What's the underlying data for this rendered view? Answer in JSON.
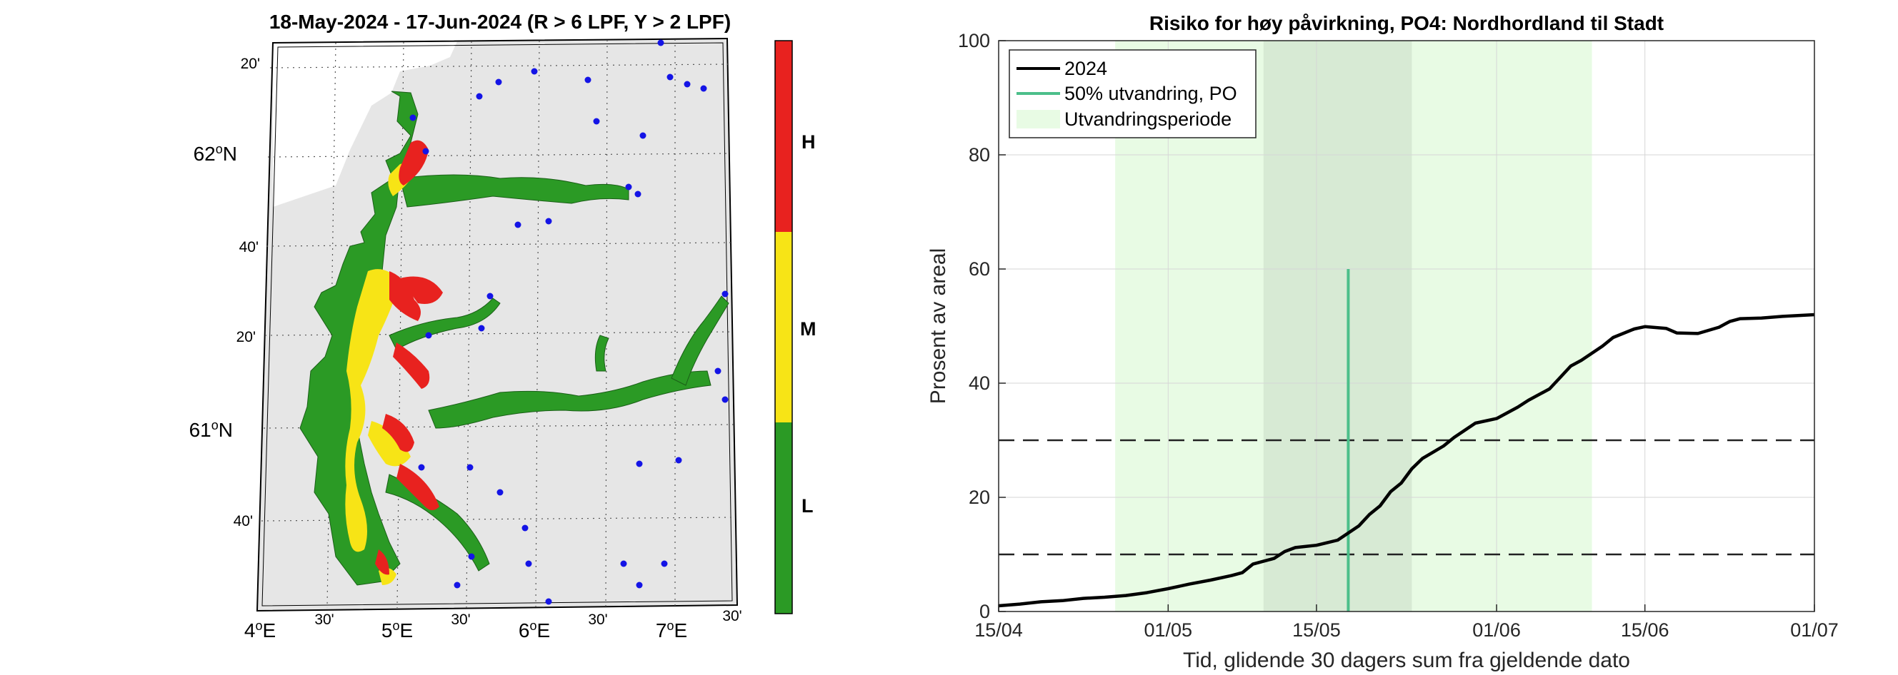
{
  "map_panel": {
    "title": "18-May-2024  - 17-Jun-2024  (R > 6 LPF, Y > 2 LPF)",
    "lat_labels": [
      {
        "deg": "62",
        "sup": "o",
        "hem": "N",
        "lat": 62.0
      },
      {
        "deg": "61",
        "sup": "o",
        "hem": "N",
        "lat": 61.0
      }
    ],
    "lat_minor_labels": [
      {
        "text": "20'",
        "lat": 62.333
      },
      {
        "text": "40'",
        "lat": 61.667
      },
      {
        "text": "20'",
        "lat": 61.333
      },
      {
        "text": "40'",
        "lat": 60.667
      }
    ],
    "lon_labels": [
      {
        "deg": "4",
        "sup": "o",
        "hem": "E",
        "lon": 4.0
      },
      {
        "deg": "5",
        "sup": "o",
        "hem": "E",
        "lon": 5.0
      },
      {
        "deg": "6",
        "sup": "o",
        "hem": "E",
        "lon": 6.0
      },
      {
        "deg": "7",
        "sup": "o",
        "hem": "E",
        "lon": 7.0
      }
    ],
    "lon_minor_labels": [
      {
        "text": "30'",
        "lon": 4.5
      },
      {
        "text": "30'",
        "lon": 5.5
      },
      {
        "text": "30'",
        "lon": 6.5
      },
      {
        "text": "30'",
        "lon": 7.5
      }
    ],
    "colorbar": [
      {
        "label": "H",
        "color": "#e8221f"
      },
      {
        "label": "M",
        "color": "#f7e416"
      },
      {
        "label": "L",
        "color": "#2b9a25"
      }
    ],
    "colors": {
      "land": "#e6e6e6",
      "sea_low": "#2b9a25",
      "sea_mid": "#f7e416",
      "sea_high": "#e8221f",
      "stations": "#1414e6"
    }
  },
  "chart_data": {
    "type": "line",
    "title": "Risiko for høy påvirkning, PO4: Nordhordland til Stadt",
    "xlabel": "Tid, glidende 30 dagers sum fra gjeldende dato",
    "ylabel": "Prosent av areal",
    "x_range": [
      "2024-04-15",
      "2024-07-01"
    ],
    "ylim": [
      0,
      100
    ],
    "x_ticks": [
      {
        "date": "2024-04-15",
        "label": "15/04"
      },
      {
        "date": "2024-05-01",
        "label": "01/05"
      },
      {
        "date": "2024-05-15",
        "label": "15/05"
      },
      {
        "date": "2024-06-01",
        "label": "01/06"
      },
      {
        "date": "2024-06-15",
        "label": "15/06"
      },
      {
        "date": "2024-07-01",
        "label": "01/07"
      }
    ],
    "y_ticks": [
      0,
      20,
      40,
      60,
      80,
      100
    ],
    "legend_position": "top-left",
    "legend": [
      "2024",
      "50% utvandring, PO",
      "Utvandringsperiode"
    ],
    "series": [
      {
        "name": "2024",
        "color": "#000000",
        "points": [
          [
            "2024-04-15",
            1.0
          ],
          [
            "2024-04-17",
            1.3
          ],
          [
            "2024-04-19",
            1.7
          ],
          [
            "2024-04-21",
            1.9
          ],
          [
            "2024-04-23",
            2.3
          ],
          [
            "2024-04-25",
            2.5
          ],
          [
            "2024-04-27",
            2.8
          ],
          [
            "2024-04-29",
            3.3
          ],
          [
            "2024-05-01",
            4.0
          ],
          [
            "2024-05-03",
            4.8
          ],
          [
            "2024-05-05",
            5.5
          ],
          [
            "2024-05-07",
            6.3
          ],
          [
            "2024-05-08",
            6.8
          ],
          [
            "2024-05-09",
            8.3
          ],
          [
            "2024-05-11",
            9.3
          ],
          [
            "2024-05-12",
            10.5
          ],
          [
            "2024-05-13",
            11.2
          ],
          [
            "2024-05-15",
            11.6
          ],
          [
            "2024-05-17",
            12.5
          ],
          [
            "2024-05-19",
            15.0
          ],
          [
            "2024-05-20",
            17.0
          ],
          [
            "2024-05-21",
            18.5
          ],
          [
            "2024-05-22",
            21.0
          ],
          [
            "2024-05-23",
            22.5
          ],
          [
            "2024-05-24",
            25.0
          ],
          [
            "2024-05-25",
            26.8
          ],
          [
            "2024-05-27",
            29.0
          ],
          [
            "2024-05-28",
            30.5
          ],
          [
            "2024-05-30",
            33.0
          ],
          [
            "2024-06-01",
            33.8
          ],
          [
            "2024-06-03",
            35.8
          ],
          [
            "2024-06-04",
            37.0
          ],
          [
            "2024-06-06",
            39.0
          ],
          [
            "2024-06-07",
            41.0
          ],
          [
            "2024-06-08",
            43.0
          ],
          [
            "2024-06-09",
            44.0
          ],
          [
            "2024-06-11",
            46.5
          ],
          [
            "2024-06-12",
            48.0
          ],
          [
            "2024-06-14",
            49.5
          ],
          [
            "2024-06-15",
            49.9
          ],
          [
            "2024-06-17",
            49.6
          ],
          [
            "2024-06-18",
            48.8
          ],
          [
            "2024-06-20",
            48.7
          ],
          [
            "2024-06-22",
            49.8
          ],
          [
            "2024-06-23",
            50.8
          ],
          [
            "2024-06-24",
            51.3
          ],
          [
            "2024-06-26",
            51.4
          ],
          [
            "2024-06-28",
            51.7
          ],
          [
            "2024-07-01",
            52.0
          ]
        ]
      }
    ],
    "migration_line": {
      "label": "50% utvandring, PO",
      "date": "2024-05-18",
      "y": [
        0,
        60
      ],
      "color": "#4cbf8a"
    },
    "migration_period": {
      "label": "Utvandringsperiode",
      "start": "2024-04-26",
      "end": "2024-06-10",
      "color": "#e8fbe4"
    },
    "highlight_window": {
      "start": "2024-05-10",
      "end": "2024-05-24",
      "color": "#d7ead4"
    },
    "threshold_lines": [
      10,
      30
    ],
    "grid": true
  }
}
